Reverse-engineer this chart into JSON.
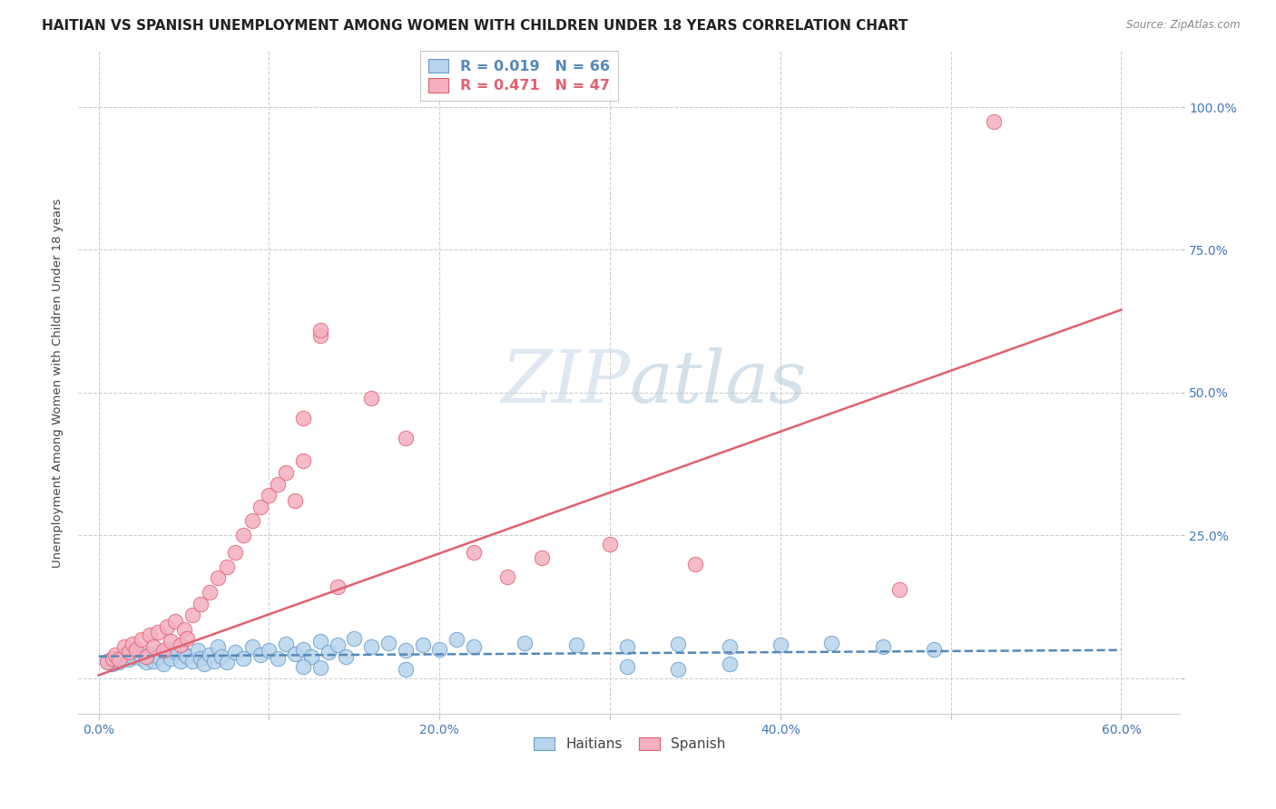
{
  "title": "HAITIAN VS SPANISH UNEMPLOYMENT AMONG WOMEN WITH CHILDREN UNDER 18 YEARS CORRELATION CHART",
  "source": "Source: ZipAtlas.com",
  "ylabel": "Unemployment Among Women with Children Under 18 years",
  "xlim": [
    -0.012,
    0.635
  ],
  "ylim": [
    -0.065,
    1.1
  ],
  "haitian_R": 0.019,
  "haitian_N": 66,
  "spanish_R": 0.471,
  "spanish_N": 47,
  "haitian_fill": "#b8d4ec",
  "haitian_edge": "#6699cc",
  "spanish_fill": "#f5b0c0",
  "spanish_edge": "#e06070",
  "haitian_line_color": "#5588bb",
  "spanish_line_color": "#e06070",
  "axis_color": "#4477bb",
  "grid_color": "#cccccc",
  "bg_color": "#ffffff",
  "watermark_color": "#c8d8ea",
  "title_color": "#222222",
  "source_color": "#888888",
  "ylabel_color": "#444444",
  "xtick_vals": [
    0.0,
    0.1,
    0.2,
    0.3,
    0.4,
    0.5,
    0.6
  ],
  "xtick_labels": [
    "0.0%",
    "",
    "20.0%",
    "",
    "40.0%",
    "",
    "60.0%"
  ],
  "ytick_vals": [
    0.0,
    0.25,
    0.5,
    0.75,
    1.0
  ],
  "ytick_labels": [
    "",
    "25.0%",
    "50.0%",
    "75.0%",
    "100.0%"
  ],
  "haitian_x": [
    0.005,
    0.008,
    0.01,
    0.012,
    0.015,
    0.018,
    0.02,
    0.022,
    0.025,
    0.028,
    0.03,
    0.032,
    0.035,
    0.038,
    0.04,
    0.042,
    0.045,
    0.048,
    0.05,
    0.052,
    0.055,
    0.058,
    0.06,
    0.062,
    0.065,
    0.068,
    0.07,
    0.072,
    0.075,
    0.08,
    0.085,
    0.09,
    0.095,
    0.1,
    0.105,
    0.11,
    0.115,
    0.12,
    0.125,
    0.13,
    0.135,
    0.14,
    0.145,
    0.15,
    0.16,
    0.17,
    0.18,
    0.19,
    0.2,
    0.21,
    0.22,
    0.25,
    0.28,
    0.31,
    0.34,
    0.37,
    0.4,
    0.43,
    0.46,
    0.49,
    0.31,
    0.34,
    0.37,
    0.12,
    0.13,
    0.18
  ],
  "haitian_y": [
    0.03,
    0.025,
    0.035,
    0.028,
    0.04,
    0.032,
    0.038,
    0.045,
    0.035,
    0.028,
    0.042,
    0.03,
    0.038,
    0.025,
    0.05,
    0.035,
    0.045,
    0.03,
    0.042,
    0.038,
    0.03,
    0.048,
    0.035,
    0.025,
    0.04,
    0.03,
    0.055,
    0.038,
    0.028,
    0.045,
    0.035,
    0.055,
    0.04,
    0.048,
    0.035,
    0.06,
    0.042,
    0.05,
    0.038,
    0.065,
    0.045,
    0.058,
    0.038,
    0.07,
    0.055,
    0.062,
    0.048,
    0.058,
    0.05,
    0.068,
    0.055,
    0.062,
    0.058,
    0.055,
    0.06,
    0.055,
    0.058,
    0.062,
    0.055,
    0.05,
    0.02,
    0.015,
    0.025,
    0.02,
    0.018,
    0.015
  ],
  "spanish_x": [
    0.005,
    0.008,
    0.01,
    0.012,
    0.015,
    0.018,
    0.02,
    0.022,
    0.025,
    0.028,
    0.03,
    0.032,
    0.035,
    0.038,
    0.04,
    0.042,
    0.045,
    0.048,
    0.05,
    0.052,
    0.055,
    0.06,
    0.065,
    0.07,
    0.075,
    0.08,
    0.085,
    0.09,
    0.095,
    0.1,
    0.11,
    0.12,
    0.13,
    0.13,
    0.16,
    0.18,
    0.22,
    0.26,
    0.3,
    0.35,
    0.24,
    0.47,
    0.105,
    0.115,
    0.12,
    0.525,
    0.14
  ],
  "spanish_y": [
    0.028,
    0.035,
    0.04,
    0.032,
    0.055,
    0.045,
    0.06,
    0.05,
    0.068,
    0.038,
    0.075,
    0.055,
    0.08,
    0.048,
    0.09,
    0.065,
    0.1,
    0.058,
    0.085,
    0.07,
    0.11,
    0.13,
    0.15,
    0.175,
    0.195,
    0.22,
    0.25,
    0.275,
    0.3,
    0.32,
    0.36,
    0.38,
    0.6,
    0.61,
    0.49,
    0.42,
    0.22,
    0.21,
    0.235,
    0.2,
    0.178,
    0.155,
    0.34,
    0.31,
    0.455,
    0.975,
    0.16
  ],
  "haitian_line_x": [
    0.0,
    0.6
  ],
  "haitian_line_y": [
    0.038,
    0.049
  ],
  "spanish_line_x": [
    0.0,
    0.6
  ],
  "spanish_line_y": [
    0.005,
    0.645
  ]
}
